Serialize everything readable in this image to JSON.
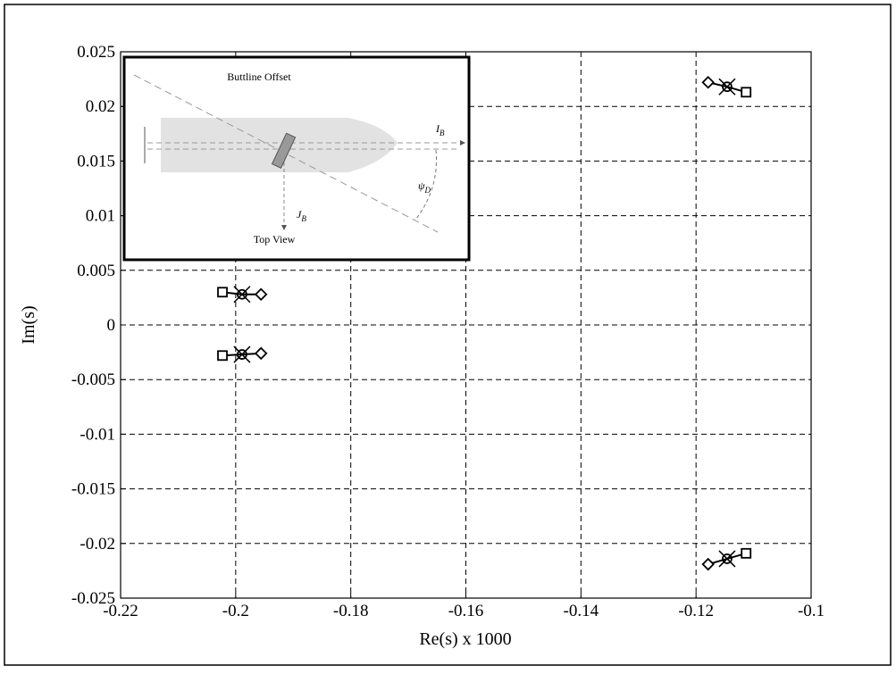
{
  "chart_data": {
    "type": "scatter",
    "xlabel": "Re(s) x 1000",
    "ylabel": "Im(s)",
    "xlim": [
      -0.22,
      -0.1
    ],
    "xticks": [
      -0.22,
      -0.2,
      -0.18,
      -0.16,
      -0.14,
      -0.12,
      -0.1
    ],
    "ylim": [
      -0.025,
      0.025
    ],
    "yticks": [
      -0.025,
      -0.02,
      -0.015,
      -0.01,
      -0.005,
      0,
      0.005,
      0.01,
      0.015,
      0.02,
      0.025
    ],
    "grid": true,
    "color": "#000000",
    "series": [
      {
        "marker": "square",
        "x": [
          -0.1113,
          -0.1113,
          -0.2023,
          -0.2023
        ],
        "values": [
          0.0213,
          -0.0209,
          0.003,
          -0.0028
        ]
      },
      {
        "marker": "circle-x",
        "x": [
          -0.1146,
          -0.1146,
          -0.1989,
          -0.1989
        ],
        "values": [
          0.0218,
          -0.0214,
          0.0028,
          -0.0027
        ]
      },
      {
        "marker": "diamond",
        "x": [
          -0.1179,
          -0.1179,
          -0.1956,
          -0.1956
        ],
        "values": [
          0.0222,
          -0.0219,
          0.0028,
          -0.0026
        ]
      }
    ]
  },
  "inset": {
    "title": "Buttline Offset",
    "caption": "Top View",
    "i_label": "I",
    "i_sub": "B",
    "j_label": "J",
    "j_sub": "B",
    "psi_label": "ψ",
    "psi_sub": "D"
  }
}
